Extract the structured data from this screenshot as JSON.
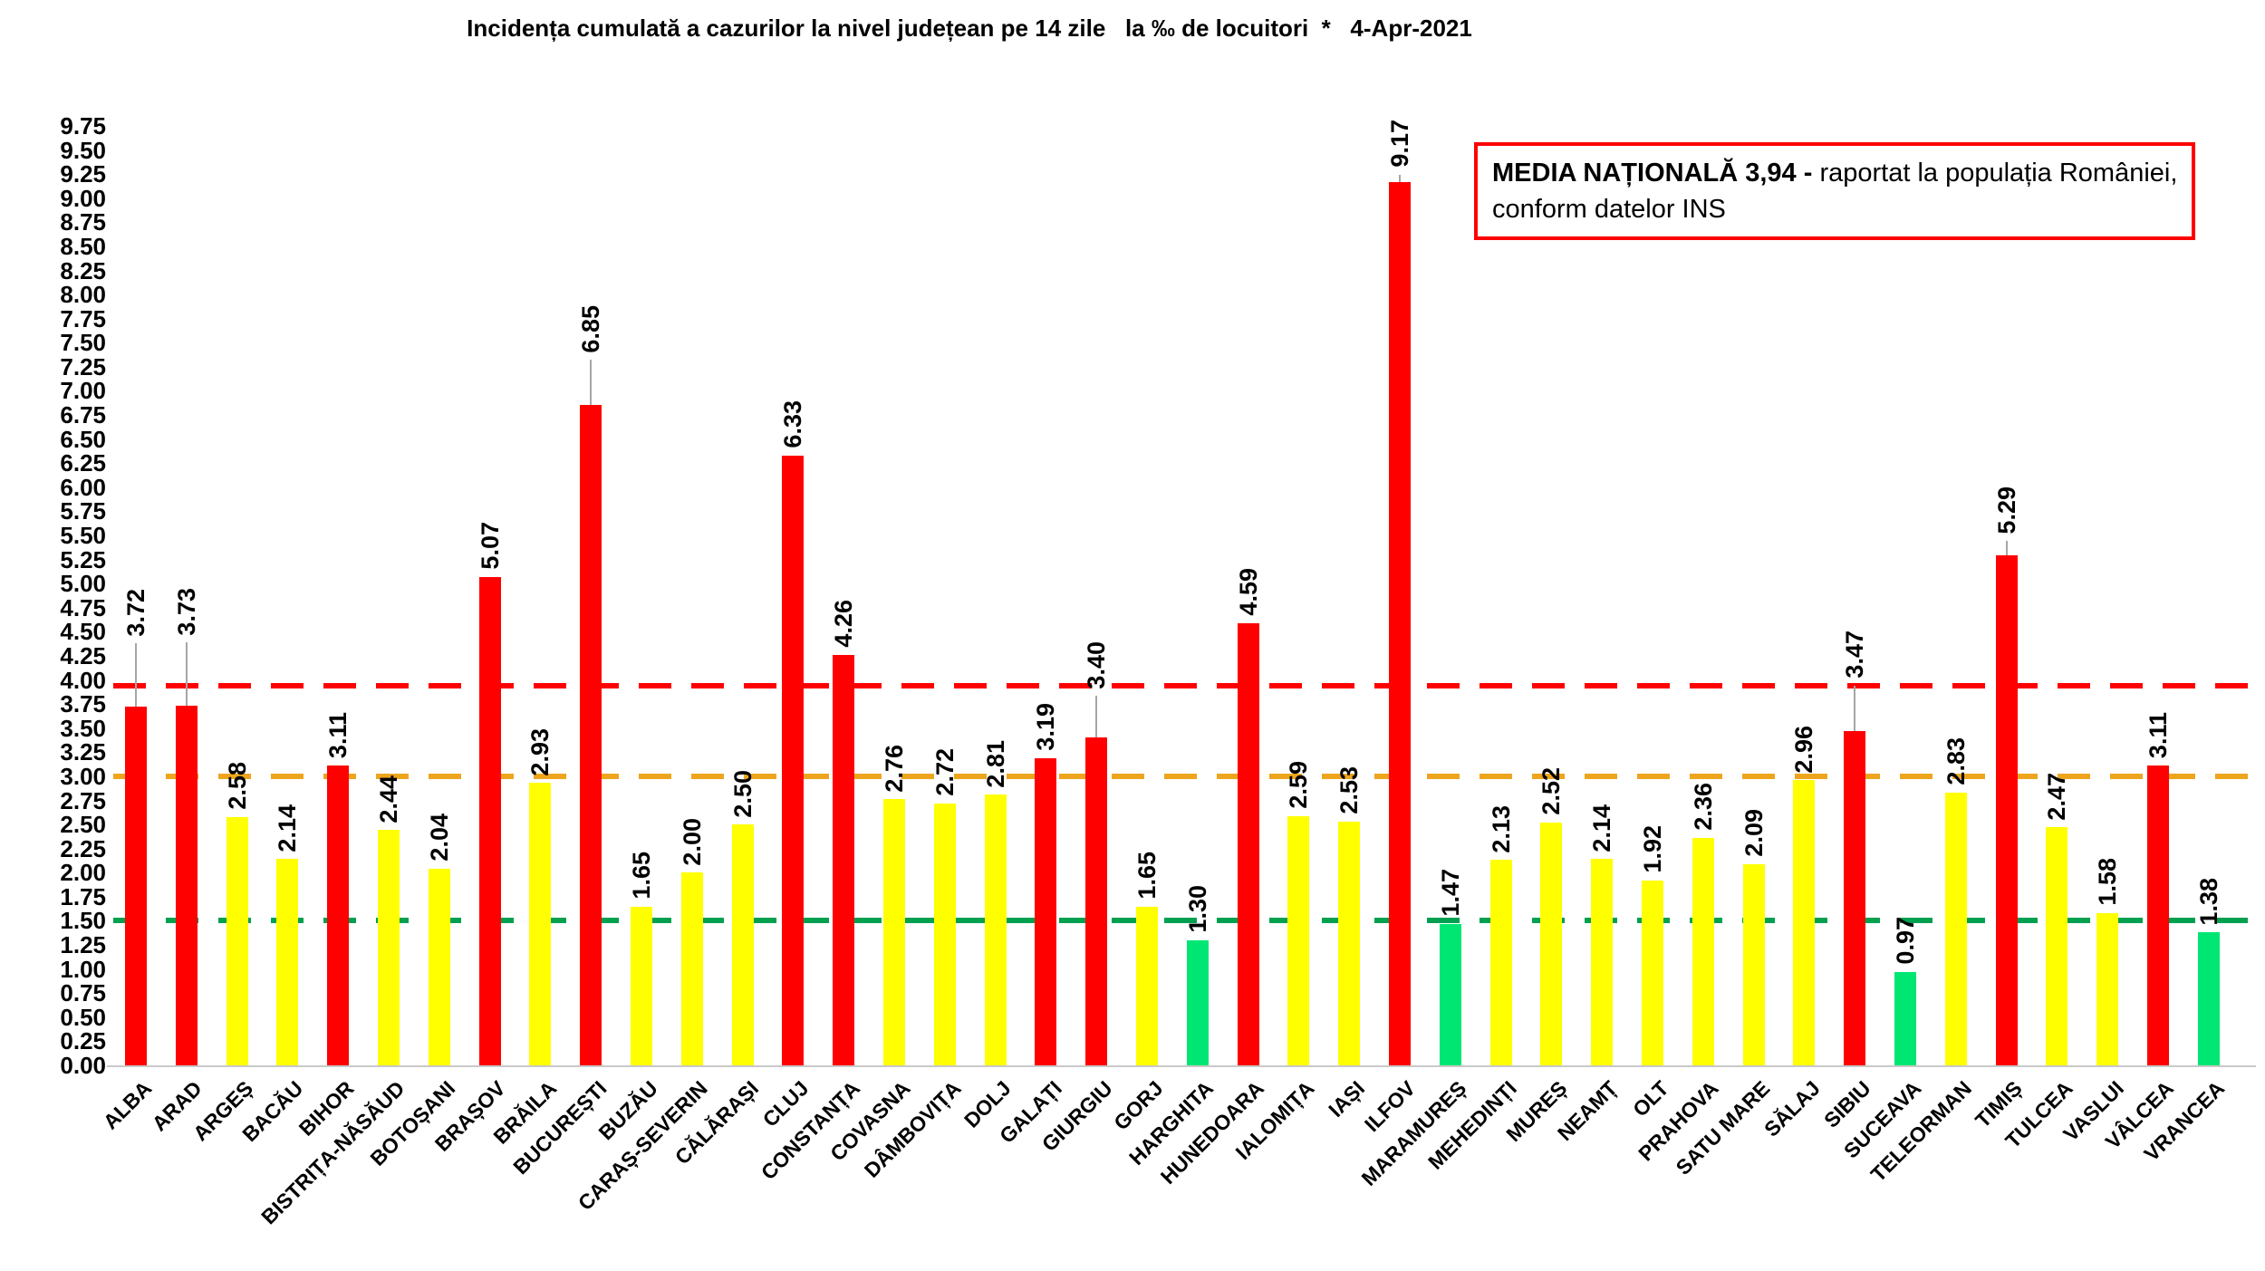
{
  "chart_data": {
    "type": "bar",
    "title": "Incidența cumulată a cazurilor la nivel județean pe 14 zile   la ‰ de locuitori  *   4-Apr-2021",
    "annotation": {
      "bold": "MEDIA NAȚIONALĂ 3,94 -",
      "line1_rest": " raportat la populația României,",
      "line2": "conform datelor INS",
      "border_color": "#FF0000"
    },
    "y_axis": {
      "min": 0,
      "max": 9.75,
      "step": 0.25,
      "ticks": [
        "0.00",
        "0.25",
        "0.50",
        "0.75",
        "1.00",
        "1.25",
        "1.50",
        "1.75",
        "2.00",
        "2.25",
        "2.50",
        "2.75",
        "3.00",
        "3.25",
        "3.50",
        "3.75",
        "4.00",
        "4.25",
        "4.50",
        "4.75",
        "5.00",
        "5.25",
        "5.50",
        "5.75",
        "6.00",
        "6.25",
        "6.50",
        "6.75",
        "7.00",
        "7.25",
        "7.50",
        "7.75",
        "8.00",
        "8.25",
        "8.50",
        "8.75",
        "9.00",
        "9.25",
        "9.50",
        "9.75"
      ]
    },
    "palette": {
      "red": "#FF0000",
      "yellow": "#FFFF00",
      "green": "#00E673"
    },
    "reference_lines": [
      {
        "name": "media-nationala",
        "value": 3.94,
        "color": "#FF0000"
      },
      {
        "name": "prag-3",
        "value": 3.0,
        "color": "#EDA51E"
      },
      {
        "name": "prag-1-5",
        "value": 1.5,
        "color": "#00A050"
      }
    ],
    "legend_position": "none",
    "grid": false,
    "counties": [
      {
        "name": "ALBA",
        "value": 3.72,
        "color": "red",
        "leader": 70
      },
      {
        "name": "ARAD",
        "value": 3.73,
        "color": "red",
        "leader": 70
      },
      {
        "name": "ARGEȘ",
        "value": 2.58,
        "color": "yellow",
        "leader": 0
      },
      {
        "name": "BACĂU",
        "value": 2.14,
        "color": "yellow",
        "leader": 0
      },
      {
        "name": "BIHOR",
        "value": 3.11,
        "color": "red",
        "leader": 0
      },
      {
        "name": "BISTRIȚA-NĂSĂUD",
        "value": 2.44,
        "color": "yellow",
        "leader": 0
      },
      {
        "name": "BOTOȘANI",
        "value": 2.04,
        "color": "yellow",
        "leader": 0
      },
      {
        "name": "BRAȘOV",
        "value": 5.07,
        "color": "red",
        "leader": 0
      },
      {
        "name": "BRĂILA",
        "value": 2.93,
        "color": "yellow",
        "leader": 0
      },
      {
        "name": "BUCUREȘTI",
        "value": 6.85,
        "color": "red",
        "leader": 50
      },
      {
        "name": "BUZĂU",
        "value": 1.65,
        "color": "yellow",
        "leader": 0
      },
      {
        "name": "CARAȘ-SEVERIN",
        "value": 2.0,
        "color": "yellow",
        "leader": 0
      },
      {
        "name": "CĂLĂRAȘI",
        "value": 2.5,
        "color": "yellow",
        "leader": 0
      },
      {
        "name": "CLUJ",
        "value": 6.33,
        "color": "red",
        "leader": 0
      },
      {
        "name": "CONSTANȚA",
        "value": 4.26,
        "color": "red",
        "leader": 0
      },
      {
        "name": "COVASNA",
        "value": 2.76,
        "color": "yellow",
        "leader": 0
      },
      {
        "name": "DÂMBOVIȚA",
        "value": 2.72,
        "color": "yellow",
        "leader": 0
      },
      {
        "name": "DOLJ",
        "value": 2.81,
        "color": "yellow",
        "leader": 0
      },
      {
        "name": "GALAȚI",
        "value": 3.19,
        "color": "red",
        "leader": 0
      },
      {
        "name": "GIURGIU",
        "value": 3.4,
        "color": "red",
        "leader": 46
      },
      {
        "name": "GORJ",
        "value": 1.65,
        "color": "yellow",
        "leader": 0
      },
      {
        "name": "HARGHITA",
        "value": 1.3,
        "color": "green",
        "leader": 0
      },
      {
        "name": "HUNEDOARA",
        "value": 4.59,
        "color": "red",
        "leader": 0
      },
      {
        "name": "IALOMIȚA",
        "value": 2.59,
        "color": "yellow",
        "leader": 0
      },
      {
        "name": "IAȘI",
        "value": 2.53,
        "color": "yellow",
        "leader": 0
      },
      {
        "name": "ILFOV",
        "value": 9.17,
        "color": "red",
        "leader": 8
      },
      {
        "name": "MARAMUREȘ",
        "value": 1.47,
        "color": "green",
        "leader": 0
      },
      {
        "name": "MEHEDINȚI",
        "value": 2.13,
        "color": "yellow",
        "leader": 0
      },
      {
        "name": "MUREȘ",
        "value": 2.52,
        "color": "yellow",
        "leader": 0
      },
      {
        "name": "NEAMȚ",
        "value": 2.14,
        "color": "yellow",
        "leader": 0
      },
      {
        "name": "OLT",
        "value": 1.92,
        "color": "yellow",
        "leader": 0
      },
      {
        "name": "PRAHOVA",
        "value": 2.36,
        "color": "yellow",
        "leader": 0
      },
      {
        "name": "SATU MARE",
        "value": 2.09,
        "color": "yellow",
        "leader": 0
      },
      {
        "name": "SĂLAJ",
        "value": 2.96,
        "color": "yellow",
        "leader": 0
      },
      {
        "name": "SIBIU",
        "value": 3.47,
        "color": "red",
        "leader": 50
      },
      {
        "name": "SUCEAVA",
        "value": 0.97,
        "color": "green",
        "leader": 0
      },
      {
        "name": "TELEORMAN",
        "value": 2.83,
        "color": "yellow",
        "leader": 0
      },
      {
        "name": "TIMIȘ",
        "value": 5.29,
        "color": "red",
        "leader": 16
      },
      {
        "name": "TULCEA",
        "value": 2.47,
        "color": "yellow",
        "leader": 0
      },
      {
        "name": "VASLUI",
        "value": 1.58,
        "color": "yellow",
        "leader": 0
      },
      {
        "name": "VÂLCEA",
        "value": 3.11,
        "color": "red",
        "leader": 0
      },
      {
        "name": "VRANCEA",
        "value": 1.38,
        "color": "green",
        "leader": 0
      }
    ]
  }
}
